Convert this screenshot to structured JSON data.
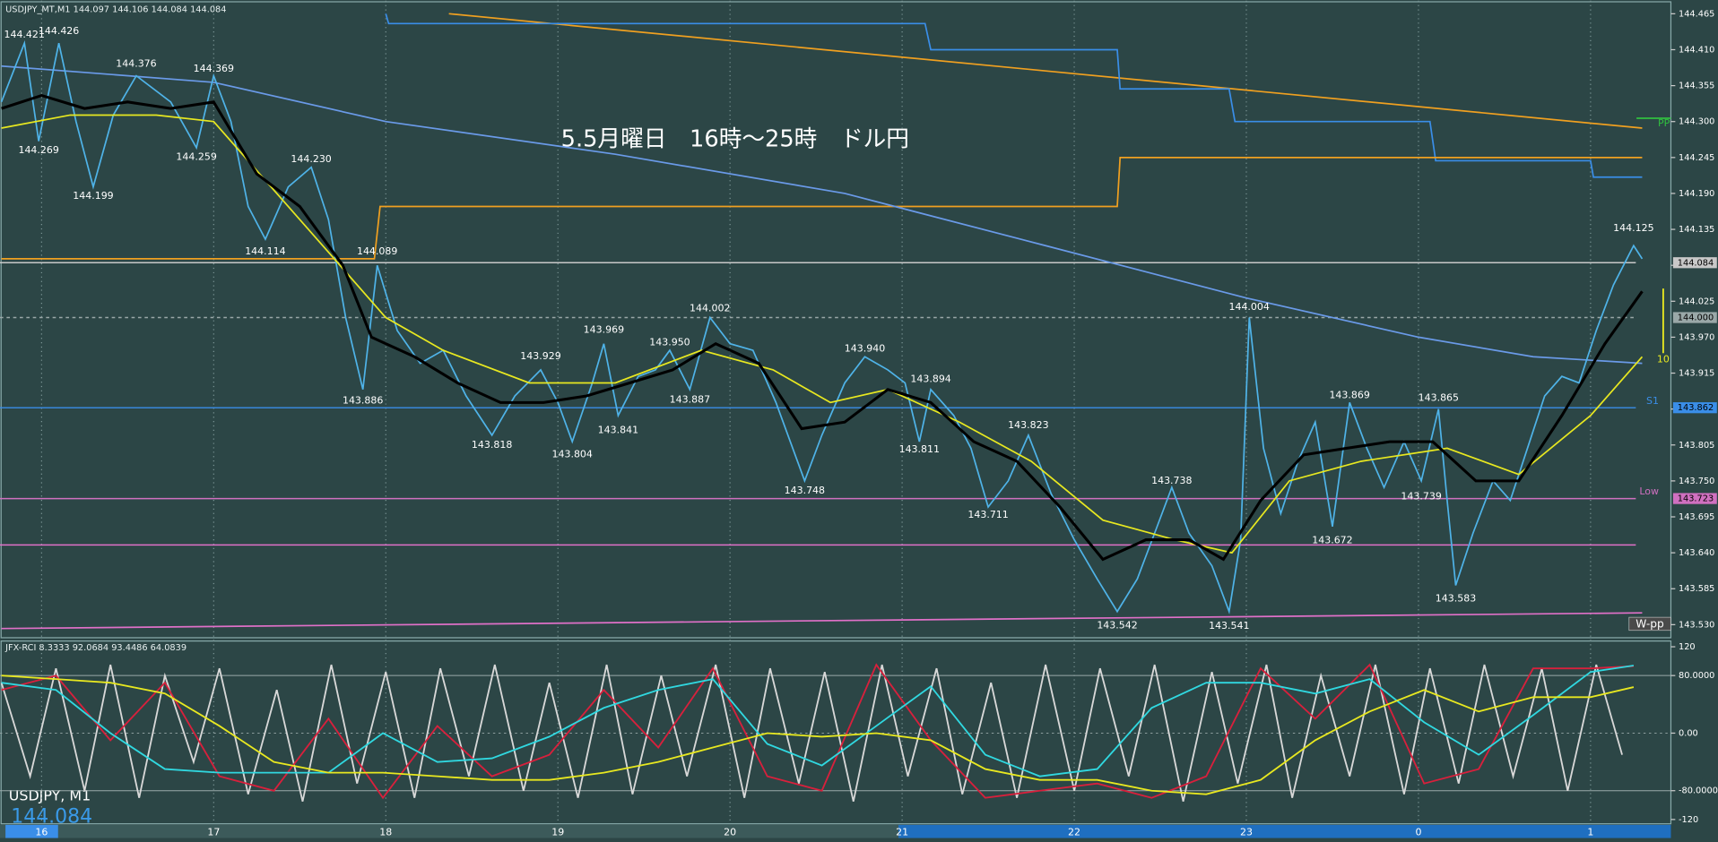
{
  "chart_data": [
    {
      "type": "line",
      "header": "USDJPY_MT,M1 144.097 144.106 144.084 144.084",
      "title": "5.5月曜日　16時～25時　ドル円",
      "symbol_label": "USDJPY, M1",
      "last_price": 144.084,
      "spread_label": "10",
      "xlim": [
        -14.5,
        568
      ],
      "xticks": [
        {
          "value": 0,
          "label": "16"
        },
        {
          "value": 60,
          "label": "17"
        },
        {
          "value": 120,
          "label": "18"
        },
        {
          "value": 180,
          "label": "19"
        },
        {
          "value": 240,
          "label": "20"
        },
        {
          "value": 300,
          "label": "21"
        },
        {
          "value": 360,
          "label": "22"
        },
        {
          "value": 420,
          "label": "23"
        },
        {
          "value": 480,
          "label": "0"
        },
        {
          "value": 540,
          "label": "1"
        }
      ],
      "ylim": [
        143.51,
        144.485
      ],
      "yticks": [
        144.465,
        {
          "value": 144.41,
          "label": "144.410"
        },
        144.355,
        {
          "value": 144.3,
          "label": "144.300"
        },
        144.245,
        {
          "value": 144.19,
          "label": "144.190"
        },
        144.135,
        {
          "value": 144.08,
          "label": "144.080"
        },
        144.025,
        {
          "value": 143.97,
          "label": "143.970"
        },
        143.915,
        {
          "value": 143.86,
          "label": "143.860"
        },
        143.805,
        {
          "value": 143.75,
          "label": "143.750"
        },
        143.695,
        {
          "value": 143.64,
          "label": "143.640"
        },
        143.585,
        {
          "value": 143.53,
          "label": "143.530"
        }
      ],
      "grid": true,
      "series": [
        {
          "color": "#f0a020",
          "x": [
            142,
            558
          ],
          "values": [
            144.465,
            144.29
          ]
        },
        {
          "color": "#3a8ee8",
          "x": [
            120,
            121,
            308,
            310,
            375,
            376,
            414,
            416,
            484,
            486,
            540,
            541,
            558
          ],
          "values": [
            144.465,
            144.45,
            144.45,
            144.41,
            144.41,
            144.35,
            144.35,
            144.3,
            144.3,
            144.24,
            144.24,
            144.215,
            144.215
          ]
        },
        {
          "color": "#f0a020",
          "x": [
            -14,
            116,
            118,
            375,
            376,
            558
          ],
          "values": [
            144.09,
            144.09,
            144.17,
            144.17,
            144.245,
            144.245
          ]
        },
        {
          "color": "#6a9ae8",
          "x": [
            -14,
            60,
            120,
            200,
            280,
            350,
            420,
            480,
            520,
            558
          ],
          "values": [
            144.385,
            144.36,
            144.3,
            144.25,
            144.19,
            144.11,
            144.03,
            143.97,
            143.94,
            143.93
          ]
        },
        {
          "name": "W-pp",
          "color": "#e070c8",
          "x": [
            -14,
            558
          ],
          "values": [
            143.524,
            143.548
          ]
        },
        {
          "name": "PP",
          "color": "#30c040",
          "x": [
            556,
            568
          ],
          "values": [
            144.305,
            144.305
          ]
        },
        {
          "color": "#4fb3e8",
          "x": [
            -14,
            -6,
            -1,
            6,
            12,
            18,
            25,
            33,
            45,
            54,
            60,
            66,
            72,
            78,
            86,
            94,
            100,
            106,
            112,
            117,
            124,
            132,
            140,
            148,
            157,
            165,
            174,
            180,
            185,
            192,
            196,
            201,
            208,
            214,
            219,
            226,
            233,
            240,
            248,
            256,
            266,
            272,
            280,
            287,
            295,
            301,
            306,
            310,
            318,
            324,
            330,
            337,
            344,
            352,
            360,
            368,
            375,
            382,
            388,
            394,
            400,
            408,
            414,
            418,
            421,
            426,
            432,
            438,
            444,
            450,
            456,
            462,
            468,
            475,
            481,
            487,
            490,
            493,
            499,
            506,
            512,
            518,
            524,
            530,
            536,
            542,
            548,
            555,
            558
          ],
          "values": [
            144.33,
            144.42,
            144.27,
            144.42,
            144.3,
            144.2,
            144.31,
            144.37,
            144.33,
            144.26,
            144.37,
            144.3,
            144.17,
            144.12,
            144.2,
            144.23,
            144.15,
            144.0,
            143.89,
            144.08,
            143.98,
            143.93,
            143.95,
            143.88,
            143.82,
            143.88,
            143.92,
            143.87,
            143.81,
            143.9,
            143.96,
            143.85,
            143.91,
            143.92,
            143.95,
            143.89,
            144.0,
            143.96,
            143.95,
            143.87,
            143.75,
            143.82,
            143.9,
            143.94,
            143.92,
            143.9,
            143.81,
            143.89,
            143.85,
            143.8,
            143.71,
            143.75,
            143.82,
            143.73,
            143.66,
            143.6,
            143.55,
            143.6,
            143.67,
            143.74,
            143.67,
            143.62,
            143.55,
            143.66,
            144.0,
            143.8,
            143.7,
            143.78,
            143.84,
            143.68,
            143.87,
            143.8,
            143.74,
            143.81,
            143.75,
            143.86,
            143.72,
            143.59,
            143.67,
            143.75,
            143.72,
            143.8,
            143.88,
            143.91,
            143.9,
            143.98,
            144.05,
            144.11,
            144.09
          ]
        },
        {
          "color": "#e8e820",
          "x": [
            -14,
            10,
            40,
            60,
            80,
            100,
            120,
            140,
            170,
            200,
            230,
            255,
            275,
            295,
            320,
            345,
            370,
            395,
            415,
            435,
            460,
            490,
            515,
            540,
            558
          ],
          "values": [
            144.29,
            144.31,
            144.31,
            144.3,
            144.2,
            144.1,
            144.0,
            143.95,
            143.9,
            143.9,
            143.95,
            143.92,
            143.87,
            143.89,
            143.84,
            143.78,
            143.69,
            143.66,
            143.64,
            143.75,
            143.78,
            143.8,
            143.76,
            143.85,
            143.94
          ]
        },
        {
          "color": "#000000",
          "x": [
            -14,
            0,
            15,
            30,
            45,
            60,
            75,
            90,
            105,
            115,
            130,
            145,
            160,
            175,
            190,
            205,
            220,
            235,
            250,
            265,
            280,
            295,
            310,
            325,
            340,
            355,
            370,
            385,
            400,
            412,
            425,
            440,
            455,
            470,
            485,
            500,
            515,
            530,
            545,
            558
          ],
          "values": [
            144.32,
            144.34,
            144.32,
            144.33,
            144.32,
            144.33,
            144.22,
            144.17,
            144.08,
            143.97,
            143.94,
            143.9,
            143.87,
            143.87,
            143.88,
            143.9,
            143.92,
            143.96,
            143.93,
            143.83,
            143.84,
            143.89,
            143.87,
            143.81,
            143.78,
            143.71,
            143.63,
            143.66,
            143.66,
            143.63,
            143.72,
            143.79,
            143.8,
            143.81,
            143.81,
            143.75,
            143.75,
            143.85,
            143.96,
            144.04
          ]
        }
      ],
      "levels": [
        {
          "value": 144.084,
          "color": "#c8c8c8",
          "boxed": true
        },
        {
          "value": 144,
          "label": "144.000",
          "color": "#9aa8a8",
          "boxed": true,
          "dashed": true
        },
        {
          "name": "S1",
          "value": 143.862,
          "color": "#3a8ee8",
          "boxed": true
        },
        {
          "name": "Low",
          "value": 143.723,
          "color": "#d070c0",
          "boxed": true
        },
        {
          "value": 143.652,
          "color": "#e070c8"
        }
      ],
      "annotations": [
        {
          "x": -6,
          "value": 144.421
        },
        {
          "x": 6,
          "value": 144.426
        },
        {
          "x": -1,
          "value": 144.269
        },
        {
          "x": 18,
          "value": 144.199
        },
        {
          "x": 33,
          "value": 144.376
        },
        {
          "x": 54,
          "value": 144.259
        },
        {
          "x": 60,
          "value": 144.369
        },
        {
          "x": 78,
          "value": 144.114
        },
        {
          "x": 94,
          "value": 144.23,
          "label": "144.230"
        },
        {
          "x": 117,
          "value": 144.089
        },
        {
          "x": 112,
          "value": 143.886
        },
        {
          "x": 157,
          "value": 143.818
        },
        {
          "x": 174,
          "value": 143.929
        },
        {
          "x": 185,
          "value": 143.804
        },
        {
          "x": 196,
          "value": 143.969
        },
        {
          "x": 201,
          "value": 143.841
        },
        {
          "x": 219,
          "value": 143.95,
          "label": "143.950"
        },
        {
          "x": 226,
          "value": 143.887
        },
        {
          "x": 233,
          "value": 144.002
        },
        {
          "x": 266,
          "value": 143.748
        },
        {
          "x": 287,
          "value": 143.94,
          "label": "143.940"
        },
        {
          "x": 310,
          "value": 143.894
        },
        {
          "x": 306,
          "value": 143.811
        },
        {
          "x": 344,
          "value": 143.823
        },
        {
          "x": 330,
          "value": 143.711
        },
        {
          "x": 375,
          "value": 143.542
        },
        {
          "x": 394,
          "value": 143.738
        },
        {
          "x": 414,
          "value": 143.541
        },
        {
          "x": 421,
          "value": 144.004
        },
        {
          "x": 456,
          "value": 143.869
        },
        {
          "x": 450,
          "value": 143.672
        },
        {
          "x": 487,
          "value": 143.865
        },
        {
          "x": 481,
          "value": 143.739
        },
        {
          "x": 493,
          "value": 143.583
        },
        {
          "x": 555,
          "value": 144.125
        }
      ]
    },
    {
      "type": "line",
      "header": "JFX-RCI 8.3333 92.0684 93.4486 64.0839",
      "ylim": [
        -126,
        128
      ],
      "yticks": [
        120,
        {
          "value": 80,
          "label": "80.0000"
        },
        {
          "value": 0,
          "label": "0.00"
        },
        {
          "value": -80,
          "label": "-80.0000"
        },
        -120
      ],
      "series": [
        {
          "color": "#d8d8d8",
          "x": [
            -14,
            -4,
            5,
            15,
            24,
            34,
            43,
            53,
            62,
            72,
            82,
            91,
            101,
            110,
            120,
            130,
            139,
            149,
            158,
            168,
            177,
            187,
            197,
            206,
            216,
            225,
            235,
            245,
            254,
            264,
            273,
            283,
            293,
            302,
            312,
            321,
            331,
            340,
            350,
            360,
            369,
            379,
            388,
            398,
            408,
            417,
            427,
            436,
            446,
            456,
            465,
            475,
            484,
            494,
            503,
            513,
            523,
            532,
            542,
            551
          ],
          "values": [
            70,
            -60,
            90,
            -80,
            95,
            -90,
            80,
            -40,
            90,
            -85,
            60,
            -95,
            95,
            -70,
            85,
            -90,
            90,
            -60,
            95,
            -80,
            70,
            -90,
            95,
            -85,
            80,
            -60,
            95,
            -90,
            90,
            -70,
            85,
            -95,
            95,
            -60,
            90,
            -85,
            70,
            -90,
            95,
            -80,
            90,
            -60,
            95,
            -95,
            85,
            -70,
            95,
            -90,
            80,
            -60,
            95,
            -85,
            90,
            -70,
            95,
            -60,
            90,
            -80,
            95,
            -30
          ]
        },
        {
          "color": "#d8203c",
          "x": [
            -14,
            5,
            24,
            43,
            62,
            81,
            100,
            119,
            138,
            157,
            177,
            196,
            215,
            234,
            253,
            272,
            291,
            310,
            329,
            348,
            368,
            387,
            406,
            425,
            444,
            463,
            482,
            501,
            520,
            540,
            555
          ],
          "values": [
            60,
            80,
            -10,
            70,
            -60,
            -80,
            20,
            -90,
            10,
            -60,
            -30,
            60,
            -20,
            90,
            -60,
            -80,
            95,
            -10,
            -90,
            -80,
            -70,
            -90,
            -60,
            90,
            20,
            95,
            -70,
            -50,
            90,
            90,
            93
          ]
        },
        {
          "color": "#30d8e0",
          "x": [
            -14,
            5,
            24,
            43,
            62,
            81,
            100,
            119,
            138,
            157,
            177,
            196,
            215,
            234,
            253,
            272,
            291,
            310,
            329,
            348,
            368,
            387,
            406,
            425,
            444,
            463,
            482,
            501,
            520,
            540,
            555
          ],
          "values": [
            70,
            60,
            0,
            -50,
            -55,
            -55,
            -55,
            0,
            -40,
            -35,
            -5,
            35,
            60,
            75,
            -15,
            -45,
            10,
            65,
            -30,
            -60,
            -50,
            35,
            70,
            70,
            55,
            75,
            15,
            -30,
            25,
            85,
            94
          ]
        },
        {
          "color": "#e8e820",
          "x": [
            -14,
            5,
            24,
            43,
            62,
            81,
            100,
            119,
            138,
            157,
            177,
            196,
            215,
            234,
            253,
            272,
            291,
            310,
            329,
            348,
            368,
            387,
            406,
            425,
            444,
            463,
            482,
            501,
            520,
            540,
            555
          ],
          "values": [
            80,
            75,
            70,
            55,
            10,
            -40,
            -55,
            -55,
            -60,
            -65,
            -65,
            -55,
            -40,
            -20,
            0,
            -5,
            0,
            -10,
            -50,
            -65,
            -65,
            -80,
            -85,
            -65,
            -10,
            30,
            60,
            30,
            50,
            50,
            64
          ]
        }
      ]
    }
  ]
}
